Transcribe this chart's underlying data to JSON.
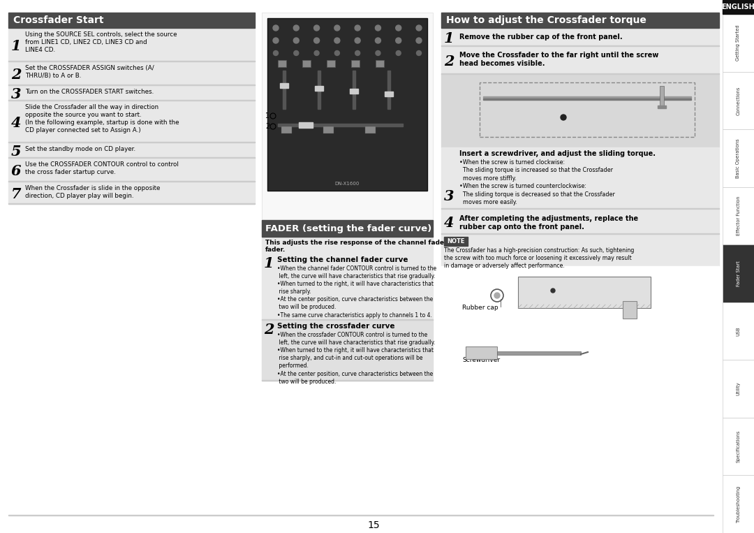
{
  "page_bg": "#ffffff",
  "sidebar_labels": [
    "Getting Started",
    "Connections",
    "Basic Operations",
    "Effector Function",
    "Fader Start",
    "USB",
    "Utility",
    "Specifications",
    "Troubleshooting"
  ],
  "sidebar_highlight": "Fader Start",
  "page_number": "15",
  "s1_title": "Crossfader Start",
  "s1_steps": [
    {
      "num": "1",
      "text": "Using the SOURCE SEL controls, select the source\nfrom LINE1 CD, LINE2 CD, LINE3 CD and\nLINE4 CD.",
      "bold": [
        "SOURCE SEL"
      ]
    },
    {
      "num": "2",
      "text": "Set the CROSSFADER ASSIGN switches (A/\nTHRU/B) to A or B.",
      "bold": [
        "CROSSFADER ASSIGN"
      ]
    },
    {
      "num": "3",
      "text": "Turn on the CROSSFADER START switches.",
      "bold": [
        "CROSSFADER START"
      ]
    },
    {
      "num": "4",
      "text": "Slide the Crossfader all the way in direction\nopposite the source you want to start.\n(In the following example, startup is done with the\nCD player connected set to Assign A.)",
      "bold": [
        "Crossfader"
      ]
    },
    {
      "num": "5",
      "text": "Set the standby mode on CD player.",
      "bold": []
    },
    {
      "num": "6",
      "text": "Use the CROSSFADER CONTOUR control to control\nthe cross fader startup curve.",
      "bold": [
        "CROSSFADER CONTOUR"
      ]
    },
    {
      "num": "7",
      "text": "When the Crossfader is slide in the opposite\ndirection, CD player play will begin.",
      "bold": [
        "Crossfader"
      ]
    }
  ],
  "s2_title": "FADER (setting the fader curve)",
  "s2_intro": "This adjusts the rise response of the channel fader/cross\nfader.",
  "s2_steps": [
    {
      "num": "1",
      "heading": "Setting the channel fader curve",
      "bullets": [
        "When the channel fader CONTOUR control is turned to the left, the curve will have characteristics that rise gradually.",
        "When turned to the right, it will have characteristics that rise sharply.",
        "At the center position, curve characteristics between the two will be produced.",
        "The same curve characteristics apply to channels 1 to 4."
      ]
    },
    {
      "num": "2",
      "heading": "Setting the crossfader curve",
      "bullets": [
        "When the crossfader CONTOUR control is turned to the left, the curve will have characteristics that rise gradually.",
        "When turned to the right, it will have characteristics that rise sharply, and cut-in and cut-out operations will be performed.",
        "At the center position, curve characteristics between the two will be produced."
      ]
    }
  ],
  "s3_title": "How to adjust the Crossfader torque",
  "s3_steps": [
    {
      "num": "1",
      "text": "Remove the rubber cap of the front panel.",
      "bold": []
    },
    {
      "num": "2",
      "text": "Move the Crossfader to the far right until the screw\nhead becomes visible.",
      "bold": [
        "Crossfader"
      ]
    },
    {
      "num": "3",
      "text": "Insert a screwdriver, and adjust the sliding torque.",
      "bold": [],
      "bullets": [
        "When the screw is turned clockwise:\nThe sliding torque is increased so that the Crossfader\nmoves more stiffly.",
        "When the screw is turned counterclockwise:\nThe sliding torque is decreased so that the Crossfader\nmoves more easily."
      ]
    },
    {
      "num": "4",
      "text": "After completing the adjustments, replace the\nrubber cap onto the front panel.",
      "bold": []
    }
  ],
  "s3_note": "The Crossfader has a high-precision construction: As such, tightening\nthe screw with too much force or loosening it excessively may result\nin damage or adversely affect performance.",
  "header_bg": "#4a4a4a",
  "section_bg": "#e8e8e8",
  "divider_color": "#cccccc",
  "header_text_color": "#ffffff",
  "text_color": "#000000"
}
